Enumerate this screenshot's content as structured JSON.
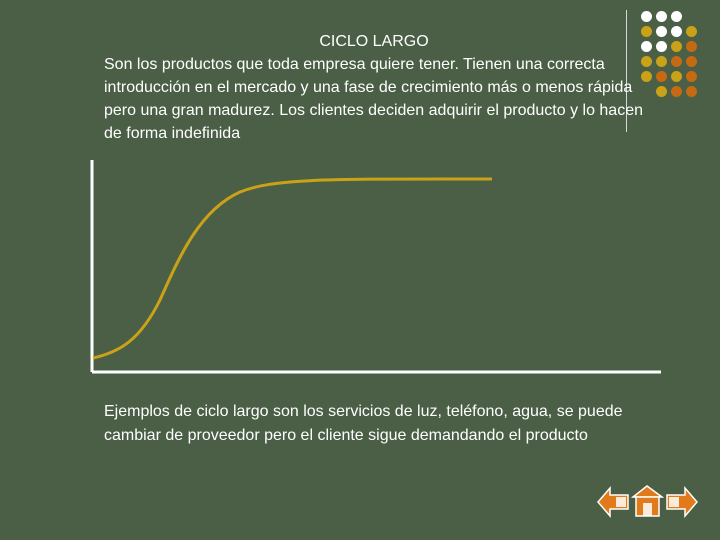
{
  "slide": {
    "title": "CICLO LARGO",
    "intro": "Son los productos que toda empresa quiere tener. Tienen una correcta introducción en el mercado y una fase de crecimiento más o menos rápida pero una gran madurez. Los clientes deciden adquirir el producto y lo hacen de forma indefinida",
    "examples": "Ejemplos de ciclo largo son los servicios de luz, teléfono, agua, se puede cambiar de proveedor pero el cliente sigue demandando el producto"
  },
  "colors": {
    "background": "#4a5f46",
    "curve": "#c9a217",
    "axis": "#ffffff",
    "dot_white": "#ffffff",
    "dot_gold": "#c9a217",
    "dot_orange": "#c56a12",
    "nav_orange": "#e07a1a"
  },
  "decor_dots": [
    [
      "white",
      "white",
      "white",
      ""
    ],
    [
      "gold",
      "white",
      "white",
      "gold"
    ],
    [
      "white",
      "white",
      "gold",
      "orange"
    ],
    [
      "gold",
      "gold",
      "orange",
      "orange"
    ],
    [
      "gold",
      "orange",
      "gold",
      "orange"
    ],
    [
      "",
      "gold",
      "orange",
      "orange"
    ]
  ],
  "navigation": {
    "icons": [
      "arrow-left-icon",
      "home-icon",
      "arrow-right-icon"
    ]
  }
}
